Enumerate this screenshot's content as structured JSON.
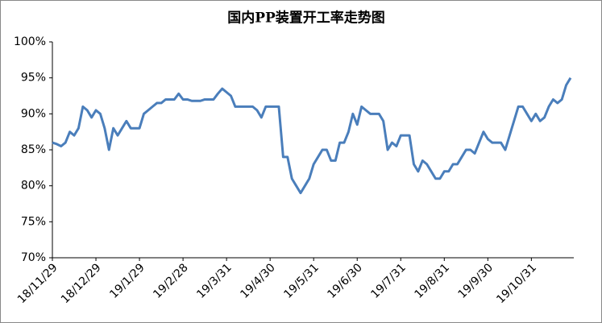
{
  "chart_data": {
    "type": "line",
    "title": "国内PP装置开工率走势图",
    "categories": [
      "18/11/29",
      null,
      null,
      null,
      null,
      null,
      null,
      null,
      null,
      null,
      "18/12/29",
      null,
      null,
      null,
      null,
      null,
      null,
      null,
      null,
      null,
      "19/1/29",
      null,
      null,
      null,
      null,
      null,
      null,
      null,
      null,
      null,
      "19/2/28",
      null,
      null,
      null,
      null,
      null,
      null,
      null,
      null,
      null,
      "19/3/31",
      null,
      null,
      null,
      null,
      null,
      null,
      null,
      null,
      null,
      "19/4/30",
      null,
      null,
      null,
      null,
      null,
      null,
      null,
      null,
      null,
      "19/5/31",
      null,
      null,
      null,
      null,
      null,
      null,
      null,
      null,
      null,
      "19/6/30",
      null,
      null,
      null,
      null,
      null,
      null,
      null,
      null,
      null,
      "19/7/31",
      null,
      null,
      null,
      null,
      null,
      null,
      null,
      null,
      null,
      "19/8/31",
      null,
      null,
      null,
      null,
      null,
      null,
      null,
      null,
      null,
      "19/9/30",
      null,
      null,
      null,
      null,
      null,
      null,
      null,
      null,
      null,
      "19/10/31",
      null,
      null,
      null,
      null,
      null,
      null,
      null,
      null,
      null
    ],
    "values": [
      86,
      85.8,
      85.5,
      86,
      87.5,
      87,
      88,
      91,
      90.5,
      89.5,
      90.5,
      90,
      88,
      85,
      88,
      87,
      88,
      89,
      88,
      88,
      88,
      90,
      90.5,
      91,
      91.5,
      91.5,
      92,
      92,
      92,
      92.8,
      92,
      92,
      91.8,
      91.8,
      91.8,
      92,
      92,
      92,
      92.8,
      93.5,
      93,
      92.5,
      91,
      91,
      91,
      91,
      91,
      90.5,
      89.5,
      91,
      91,
      91,
      91,
      84,
      84,
      81,
      80,
      79,
      80,
      81,
      83,
      84,
      85,
      85,
      83.5,
      83.5,
      86,
      86,
      87.5,
      90,
      88.5,
      91,
      90.5,
      90,
      90,
      90,
      89,
      85,
      86,
      85.5,
      87,
      87,
      87,
      83,
      82,
      83.5,
      83,
      82,
      81,
      81,
      82,
      82,
      83,
      83,
      84,
      85,
      85,
      84.5,
      86,
      87.5,
      86.5,
      86,
      86,
      86,
      85,
      87,
      89,
      91,
      91,
      90,
      89,
      90,
      89,
      89.5,
      91,
      92,
      91.5,
      92,
      94,
      95
    ],
    "color": "#4a7ebb",
    "ylim": [
      70,
      100
    ],
    "yticks": [
      {
        "value": 70,
        "label": "70%"
      },
      {
        "value": 75,
        "label": "75%"
      },
      {
        "value": 80,
        "label": "80%"
      },
      {
        "value": 85,
        "label": "85%"
      },
      {
        "value": 90,
        "label": "90%"
      },
      {
        "value": 95,
        "label": "95%"
      },
      {
        "value": 100,
        "label": "100%"
      }
    ]
  }
}
